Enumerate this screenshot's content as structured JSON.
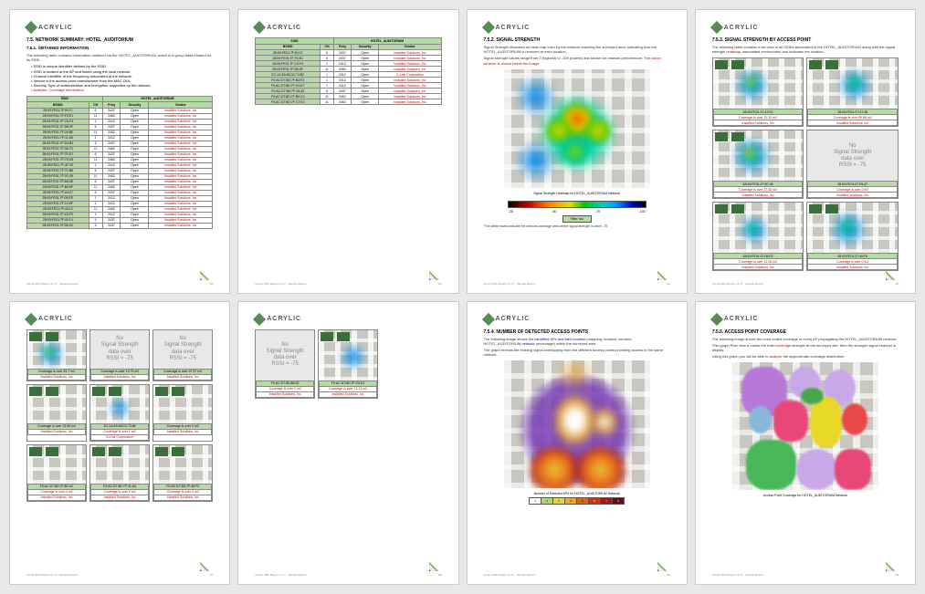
{
  "logo_text": "ACRYLIC",
  "footer_left": "Acrylic WiFi Report v1.77 · Sample Report",
  "pages": {
    "p1": {
      "num": "82",
      "title": "7.5.   NETWORK SUMMARY: HOTEL_AUDITORIUM",
      "subtitle": "7.5.1.   OBTAINED INFORMATION",
      "para1": "The following table contains information obtained via the HOTEL_AUDITORIUM, which is a group based based on its SSID.",
      "bullets": [
        "• SSID is unique identifier defined by the SSID.",
        "• SSID is located at the AP and linked using the local network.",
        "• Channel identifier of the frequency associated at the network.",
        "• Vendor is the access point manufacturer from the MAC OUI.",
        "• Security Type of authentication and encryption supported by the network."
      ],
      "bullet_red": "• Analysis: Coverage Information.",
      "table_header": [
        "SSID",
        "CH",
        "Vendor",
        "Security"
      ],
      "table_network_header": "HOTEL_AUDITORIUM"
    },
    "p2": {
      "num": "83",
      "table_network_header": "HOTEL_AUDITORIUM"
    },
    "p3": {
      "num": "84",
      "title": "7.5.2.   SIGNAL STRENGTH",
      "para1": "Signal Strength simulates an heat map color by the network reaching the surveyed area, indicating how the HOTEL_AUDITORIUM is received at each location.",
      "para2_a": "Signal strength values range from 0 (highest) to -100 (lowest) and shown for network performance. The ",
      "para2_b": "colors scheme is shown below the image.",
      "caption": "Signal Strength Heatmap for HOTEL_AUDITORIUM Network",
      "legend": [
        "-25",
        "-50",
        "-75",
        "-100"
      ],
      "note": "*The white marks indicate the network coverage area where signal strength is lower -75"
    },
    "p4": {
      "num": "85",
      "title": "7.5.3.   SIGNAL STRENGTH BY ACCESS POINT",
      "para1": "The following table contains a list view of all SSIDs associated to the HOTEL_AUDITORIUM along with the signal strength heatmap, associated environment and indicates the location."
    },
    "p5": {
      "num": "87"
    },
    "p6": {
      "num": "88"
    },
    "p7": {
      "num": "89",
      "title": "7.5.4.   NUMBER OF DETECTED ACCESS POINTS",
      "para1": "The following image shows the identified APs and their location (mapping, location, vendors, HOTEL_AUDITORIUM network percentage) within the surveyed area.",
      "para2": "The graph reveals the existing signal overlapping from the different access points providing access to the same network.",
      "caption": "Number of Detected APs for HOTEL_AUDITORIUM Network",
      "legend_nums": [
        "1",
        "2",
        "3",
        "4",
        "5",
        "6",
        "7",
        "8"
      ]
    },
    "p8": {
      "num": "90",
      "title": "7.5.5.   ACCESS POINT COVERAGE",
      "para1": "The following image shows the color coded coverage of every AP propagating the HOTEL_AUDITORIUM network.",
      "para2_a": "This graph Plan view a marks the main ",
      "para2_b": "coverage",
      "para2_c": " strength at the surveyed site, then the stronger signal channel is display.",
      "para3_a": "Using this graph you will be able to ",
      "para3_b": "analyze",
      "para3_c": " the approximate coverage distribution.",
      "caption": "Access Point Coverage for HOTEL_AUDITORIUM Network"
    }
  },
  "table_rows": [
    [
      "28:93:FE01:7F:B:CC",
      "6",
      "2437",
      "Open",
      "Installed Solutions, Inc"
    ],
    [
      "28:93:FE01:7F:F0:E1",
      "11",
      "2462",
      "Open",
      "Installed Solutions, Inc"
    ],
    [
      "28:93:FE01:7F:C0:F4",
      "1",
      "2412",
      "Open",
      "Installed Solutions, Inc"
    ],
    [
      "28:93:FE01:7F:D6:0F",
      "6",
      "2437",
      "Open",
      "Installed Solutions, Inc"
    ],
    [
      "28:93:FE01:7F:24:8E",
      "11",
      "2462",
      "Open",
      "Installed Solutions, Inc"
    ],
    [
      "28:93:FE01:7F:11:A5",
      "1",
      "2412",
      "Open",
      "Installed Solutions, Inc"
    ],
    [
      "28:93:FE01:7F:D4:B9",
      "6",
      "2437",
      "Open",
      "Installed Solutions, Inc"
    ],
    [
      "28:93:FE01:7F:0A:7C",
      "11",
      "2462",
      "Open",
      "Installed Solutions, Inc"
    ],
    [
      "28:93:FE01:7F:7E:D7",
      "6",
      "2437",
      "Open",
      "Installed Solutions, Inc"
    ],
    [
      "28:93:FE01:7F:70:C8",
      "11",
      "2462",
      "Open",
      "Installed Solutions, Inc"
    ],
    [
      "28:93:FE01:7F:4F:20",
      "1",
      "2412",
      "Open",
      "Installed Solutions, Inc"
    ],
    [
      "28:93:FE01:7F:71:B8",
      "6",
      "2437",
      "Open",
      "Installed Solutions, Inc"
    ],
    [
      "28:93:FE01:7F:0C:05",
      "11",
      "2462",
      "Open",
      "Installed Solutions, Inc"
    ],
    [
      "28:93:FE01:7F:B4:0E",
      "6",
      "2437",
      "Open",
      "Installed Solutions, Inc"
    ],
    [
      "28:93:FE01:7F:B4:6F",
      "11",
      "2462",
      "Open",
      "Installed Solutions, Inc"
    ],
    [
      "28:93:FE01:7F:A4:07",
      "6",
      "2437",
      "Open",
      "Installed Solutions, Inc"
    ],
    [
      "28:93:FE01:7F:05:EE",
      "1",
      "2412",
      "Open",
      "Installed Solutions, Inc"
    ],
    [
      "28:93:FE01:7F:11:BF",
      "1",
      "2412",
      "Open",
      "Installed Solutions, Inc"
    ],
    [
      "28:93:FE01:7F:44:12",
      "11",
      "2462",
      "Open",
      "Installed Solutions, Inc"
    ],
    [
      "28:93:FE01:7F:C0:F0",
      "1",
      "2412",
      "Open",
      "Installed Solutions, Inc"
    ],
    [
      "28:93:FE01:7F:44:14",
      "6",
      "2437",
      "Open",
      "Installed Solutions, Inc"
    ],
    [
      "28:93:FE01:7F:0A:0C",
      "6",
      "2437",
      "Open",
      "Installed Solutions, Inc"
    ]
  ],
  "table_rows_p2": [
    [
      "28:93:FE01:7F:B:CC",
      "6",
      "2437",
      "Open",
      "Installed Solutions, Inc"
    ],
    [
      "28:93:FE01:7F:F0:E1",
      "6",
      "2437",
      "Open",
      "Installed Solutions, Inc"
    ],
    [
      "28:93:FE01:7F:C0:F4",
      "1",
      "2412",
      "Open",
      "Installed Solutions, Inc"
    ],
    [
      "28:93:FE01:7F:D6:0F",
      "11",
      "2462",
      "Open",
      "Installed Solutions, Inc"
    ],
    [
      "EC:1A:59:48:D2:73:B2",
      "1",
      "2412",
      "Open",
      "D-Link Corporation"
    ],
    [
      "F0:AC:D7:8D:7F:B2:F2",
      "1",
      "2412",
      "Open",
      "Installed Solutions, Inc"
    ],
    [
      "F0:AC:D7:8D:7F:C0:E7",
      "1",
      "2412",
      "Open",
      "Installed Solutions, Inc"
    ],
    [
      "F0:AC:D7:8D:7F:2A:32",
      "6",
      "2437",
      "Open",
      "Installed Solutions, Inc"
    ],
    [
      "F0:AC:D7:8D:7F:B9:C0",
      "11",
      "2462",
      "Open",
      "Installed Solutions, Inc"
    ],
    [
      "F0:AC:D7:8D:7F:C7:E2",
      "11",
      "2462",
      "Open",
      "Installed Solutions, Inc"
    ]
  ],
  "ap_labels": [
    {
      "mac": "28:93:FE01:27:47:E2",
      "ch": "Coverage is over 31.32 m2",
      "vendor": "Installed Solutions, Inc"
    },
    {
      "mac": "28:93:FE01:27:47:48",
      "ch": "Coverage is over 59.88 m2",
      "vendor": "Installed Solutions, Inc"
    },
    {
      "mac": "28:93:FE01:27:B7:45",
      "ch": "Coverage is over 27.55 m2",
      "vendor": "Installed Solutions, Inc"
    },
    {
      "mac": "28:93:FE01:27:F6:47",
      "ch": "Coverage is over 0 m2",
      "vendor": "Installed Solutions, Inc"
    },
    {
      "mac": "28:93:FE01:27:09:E2",
      "ch": "Coverage is over 12.05 m2",
      "vendor": "Installed Solutions, Inc"
    },
    {
      "mac": "28:93:FE01:27:46:F6",
      "ch": "Coverage is over 0 m2",
      "vendor": "Installed Solutions, Inc"
    }
  ],
  "ap_labels_p5": [
    {
      "mac": "Coverage is over 29.7 m2",
      "vendor": "Installed Solutions, Inc"
    },
    {
      "mac": "Coverage is over 13.75 m2",
      "vendor": "Installed Solutions, Inc"
    },
    {
      "mac": "Coverage is over 37.97 m2",
      "vendor": "Installed Solutions, Inc"
    },
    {
      "mac": "Coverage is over 23.55 m2",
      "vendor": "Installed Solutions, Inc"
    },
    {
      "mac": "EC:1A:59:48:D2:73:86",
      "sub": "Coverage is over 0 m2",
      "vendor": "D-Link Corporation"
    },
    {
      "mac": "Coverage is over 0 m2",
      "vendor": "Installed Solutions, Inc"
    },
    {
      "mac": "F0:AC:D7:8D:7F:B2:0C",
      "sub": "Coverage is over 4 m2",
      "vendor": "Installed Solutions, Inc"
    },
    {
      "mac": "F0:AC:D7:8D:7F:41:A3",
      "sub": "Coverage is over 0 m2",
      "vendor": "Installed Solutions, Inc"
    },
    {
      "mac": "F0:AC:D7:8D:7F:48:F0",
      "sub": "Coverage is over 4 m2",
      "vendor": "Installed Solutions, Inc"
    }
  ],
  "ap_labels_p6": [
    {
      "mac": "F0:AC:D7:8D:88:0E",
      "sub": "Coverage is over 0 m2",
      "vendor": "Installed Solutions, Inc"
    },
    {
      "mac": "F0:AC:D7:8D:7F:C0:E1",
      "sub": "Coverage is over 13.13 m2",
      "vendor": "Installed Solutions, Inc"
    }
  ],
  "no_signal_text": "No\nSignal Strength\ndata over\nRSSI = -75",
  "p7_legend_colors": [
    "#ffffff",
    "#a8d878",
    "#d8d848",
    "#e8a838",
    "#d86818",
    "#c83818",
    "#a01818",
    "#601010"
  ]
}
